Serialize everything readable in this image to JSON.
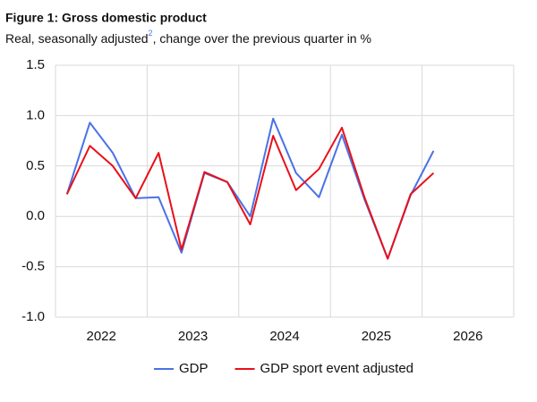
{
  "chart_data": {
    "type": "line",
    "title": "Figure 1: Gross domestic product",
    "subtitle": [
      "Real, seasonally adjusted",
      "2",
      ", change over the previous quarter in %"
    ],
    "x": [
      2022.125,
      2022.375,
      2022.625,
      2022.875,
      2023.125,
      2023.375,
      2023.625,
      2023.875,
      2024.125,
      2024.375,
      2024.625,
      2024.875,
      2025.125,
      2025.375,
      2025.625,
      2025.875,
      2026.125
    ],
    "xlim": [
      2022,
      2027
    ],
    "xticks": [
      2022,
      2023,
      2024,
      2025,
      2026,
      2027
    ],
    "x_categories": [
      "2022",
      "2023",
      "2024",
      "2025",
      "2026"
    ],
    "series": [
      {
        "name": "GDP",
        "color": "#4a72e6",
        "values": [
          0.22,
          0.93,
          0.63,
          0.18,
          0.19,
          -0.36,
          0.43,
          0.34,
          0.0,
          0.97,
          0.43,
          0.19,
          0.81,
          0.16,
          -0.42,
          0.21,
          0.65
        ]
      },
      {
        "name": "GDP sport event adjusted",
        "color": "#e8101a",
        "values": [
          0.22,
          0.7,
          0.5,
          0.18,
          0.63,
          -0.33,
          0.44,
          0.34,
          -0.08,
          0.8,
          0.26,
          0.47,
          0.88,
          0.18,
          -0.42,
          0.22,
          0.43
        ]
      }
    ],
    "ylim": [
      -1.0,
      1.5
    ],
    "yticks": [
      {
        "value": -1.0,
        "label": "-1.0"
      },
      -0.5,
      {
        "value": 0.0,
        "label": "0.0"
      },
      0.5,
      {
        "value": 1.0,
        "label": "1.0"
      },
      1.5
    ],
    "grid": true,
    "legend": "bottom"
  }
}
